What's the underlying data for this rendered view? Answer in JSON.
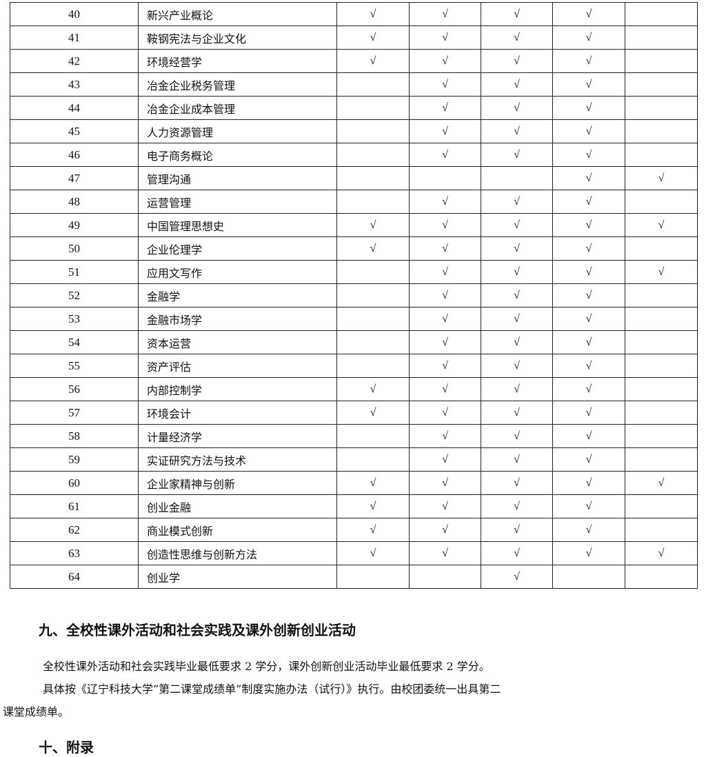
{
  "table": {
    "check_mark": "√",
    "rows": [
      {
        "no": "40",
        "name": "新兴产业概论",
        "checks": [
          1,
          1,
          1,
          1,
          0
        ]
      },
      {
        "no": "41",
        "name": "鞍钢宪法与企业文化",
        "checks": [
          1,
          1,
          1,
          1,
          0
        ]
      },
      {
        "no": "42",
        "name": "环境经营学",
        "checks": [
          1,
          1,
          1,
          1,
          0
        ]
      },
      {
        "no": "43",
        "name": "冶金企业税务管理",
        "checks": [
          0,
          1,
          1,
          1,
          0
        ]
      },
      {
        "no": "44",
        "name": "冶金企业成本管理",
        "checks": [
          0,
          1,
          1,
          1,
          0
        ]
      },
      {
        "no": "45",
        "name": "人力资源管理",
        "checks": [
          0,
          1,
          1,
          1,
          0
        ]
      },
      {
        "no": "46",
        "name": "电子商务概论",
        "checks": [
          0,
          1,
          1,
          1,
          0
        ]
      },
      {
        "no": "47",
        "name": "管理沟通",
        "checks": [
          0,
          0,
          0,
          1,
          1
        ]
      },
      {
        "no": "48",
        "name": "运营管理",
        "checks": [
          0,
          1,
          1,
          1,
          0
        ]
      },
      {
        "no": "49",
        "name": "中国管理思想史",
        "checks": [
          1,
          1,
          1,
          1,
          1
        ]
      },
      {
        "no": "50",
        "name": "企业伦理学",
        "checks": [
          1,
          1,
          1,
          1,
          0
        ]
      },
      {
        "no": "51",
        "name": "应用文写作",
        "checks": [
          0,
          1,
          1,
          1,
          1
        ]
      },
      {
        "no": "52",
        "name": "金融学",
        "checks": [
          0,
          1,
          1,
          1,
          0
        ]
      },
      {
        "no": "53",
        "name": "金融市场学",
        "checks": [
          0,
          1,
          1,
          1,
          0
        ]
      },
      {
        "no": "54",
        "name": "资本运营",
        "checks": [
          0,
          1,
          1,
          1,
          0
        ]
      },
      {
        "no": "55",
        "name": "资产评估",
        "checks": [
          0,
          1,
          1,
          1,
          0
        ]
      },
      {
        "no": "56",
        "name": "内部控制学",
        "checks": [
          1,
          1,
          1,
          1,
          0
        ]
      },
      {
        "no": "57",
        "name": "环境会计",
        "checks": [
          1,
          1,
          1,
          1,
          0
        ]
      },
      {
        "no": "58",
        "name": "计量经济学",
        "checks": [
          0,
          1,
          1,
          1,
          0
        ]
      },
      {
        "no": "59",
        "name": "实证研究方法与技术",
        "checks": [
          0,
          1,
          1,
          1,
          0
        ]
      },
      {
        "no": "60",
        "name": "企业家精神与创新",
        "checks": [
          1,
          1,
          1,
          1,
          1
        ]
      },
      {
        "no": "61",
        "name": "创业金融",
        "checks": [
          1,
          1,
          1,
          1,
          0
        ]
      },
      {
        "no": "62",
        "name": "商业模式创新",
        "checks": [
          1,
          1,
          1,
          1,
          0
        ]
      },
      {
        "no": "63",
        "name": "创造性思维与创新方法",
        "checks": [
          1,
          1,
          1,
          1,
          1
        ]
      },
      {
        "no": "64",
        "name": "创业学",
        "checks": [
          0,
          0,
          1,
          0,
          0
        ]
      }
    ]
  },
  "section9": {
    "heading": "九、全校性课外活动和社会实践及课外创新创业活动",
    "para1": "全校性课外活动和社会实践毕业最低要求 2 学分，课外创新创业活动毕业最低要求 2 学分。",
    "para2_line1": "具体按《辽宁科技大学“第二课堂成绩单”制度实施办法（试行）》执行。由校团委统一出具第二",
    "para2_line2": "课堂成绩单。"
  },
  "section10": {
    "heading": "十、附录"
  }
}
